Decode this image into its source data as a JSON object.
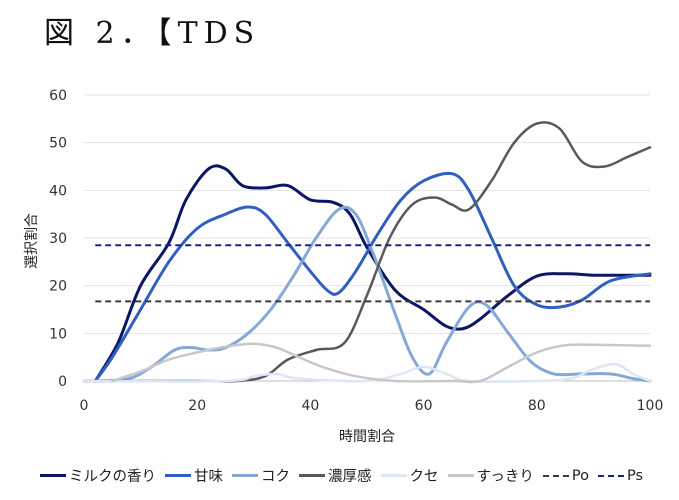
{
  "figure_title": "図 2．【TDS",
  "chart_data": {
    "type": "line",
    "title": "",
    "xlabel": "時間割合",
    "ylabel": "選択割合",
    "xlim": [
      0,
      100
    ],
    "ylim": [
      0,
      60
    ],
    "xticks": [
      0,
      20,
      40,
      60,
      80,
      100
    ],
    "yticks": [
      0,
      10,
      20,
      30,
      40,
      50,
      60
    ],
    "grid": "horizontal",
    "legend_position": "bottom",
    "series": [
      {
        "name": "ミルクの香り",
        "color": "#0d1566",
        "width": 3,
        "dash": "",
        "x": [
          2,
          6,
          10,
          15,
          18,
          22,
          25,
          28,
          32,
          36,
          40,
          44,
          47,
          50,
          55,
          60,
          64,
          67,
          70,
          75,
          80,
          85,
          90,
          95,
          100
        ],
        "y": [
          0,
          8,
          20,
          29,
          38,
          44.5,
          44.5,
          41,
          40.5,
          41,
          38,
          37.5,
          35,
          28,
          19,
          15,
          11.5,
          11,
          13,
          18,
          22,
          22.5,
          22.2,
          22.2,
          22.2
        ]
      },
      {
        "name": "甘味",
        "color": "#2f60c0",
        "width": 3,
        "dash": "",
        "x": [
          2,
          5,
          10,
          15,
          20,
          25,
          29,
          32,
          36,
          40,
          43,
          45,
          48,
          52,
          56,
          60,
          65,
          68,
          72,
          76,
          80,
          84,
          88,
          93,
          100
        ],
        "y": [
          0,
          5,
          15,
          25,
          32,
          35,
          36.5,
          35,
          29,
          23,
          19,
          18.5,
          23,
          31,
          38,
          42,
          43.5,
          40,
          30,
          20,
          16,
          15.5,
          17,
          21,
          22.5
        ]
      },
      {
        "name": "コク",
        "color": "#86a8d6",
        "width": 3,
        "dash": "",
        "x": [
          3,
          8,
          12,
          16,
          19,
          22,
          25,
          29,
          33,
          37,
          41,
          45,
          48,
          51,
          55,
          58,
          61,
          64,
          68,
          71,
          75,
          79,
          83,
          88,
          93,
          97,
          100
        ],
        "y": [
          0,
          0.5,
          3,
          6.5,
          7,
          6.5,
          7,
          10,
          15,
          22,
          30,
          36,
          35,
          27,
          14,
          5,
          1.5,
          8,
          15.5,
          16,
          10,
          4,
          1.5,
          1.5,
          1.5,
          0.5,
          0
        ]
      },
      {
        "name": "濃厚感",
        "color": "#595959",
        "width": 2.5,
        "dash": "",
        "x": [
          0,
          20,
          27,
          32,
          36,
          41,
          46,
          50,
          54,
          58,
          62,
          65,
          68,
          72,
          76,
          80,
          84,
          88,
          92,
          96,
          100
        ],
        "y": [
          0,
          0,
          0,
          1,
          4.5,
          6.5,
          8,
          18,
          30,
          37,
          38.5,
          37,
          36,
          42,
          50,
          54,
          53,
          46,
          45,
          47,
          49
        ]
      },
      {
        "name": "クセ",
        "color": "#dce6f4",
        "width": 2.5,
        "dash": "",
        "x": [
          0,
          25,
          30,
          34,
          38,
          50,
          56,
          60,
          64,
          68,
          80,
          86,
          90,
          94,
          97,
          100
        ],
        "y": [
          0,
          0,
          1,
          1.5,
          0.5,
          0,
          1.5,
          3,
          1.5,
          0,
          0,
          0.5,
          2.5,
          3.5,
          1.5,
          0
        ]
      },
      {
        "name": "すっきり",
        "color": "#c8c8c8",
        "width": 2.5,
        "dash": "",
        "x": [
          5,
          10,
          15,
          20,
          25,
          30,
          34,
          38,
          42,
          48,
          55,
          65,
          70,
          75,
          80,
          85,
          90,
          95,
          100
        ],
        "y": [
          0,
          2,
          4.5,
          6,
          7.2,
          7.8,
          7,
          5,
          3,
          1,
          0,
          0,
          0,
          3,
          6,
          7.5,
          7.6,
          7.5,
          7.4
        ]
      },
      {
        "name": "Po",
        "color": "#3a3a3a",
        "width": 2,
        "dash": "6,4",
        "x": [
          2,
          100
        ],
        "y": [
          16.7,
          16.7
        ]
      },
      {
        "name": "Ps",
        "color": "#1a237e",
        "width": 2,
        "dash": "6,4",
        "x": [
          2,
          100
        ],
        "y": [
          28.5,
          28.5
        ]
      }
    ]
  }
}
